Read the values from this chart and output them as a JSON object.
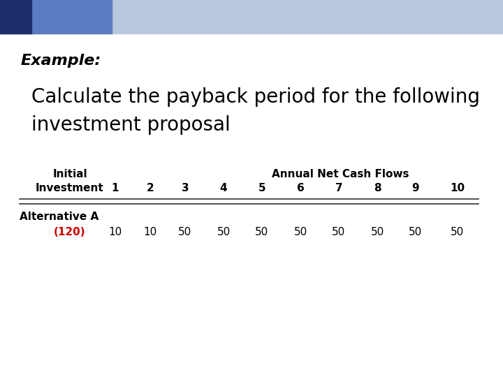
{
  "title_label": "Example:",
  "subtitle_line1": "Calculate the payback period for the following",
  "subtitle_line2": "investment proposal",
  "header_row1_col1": "Initial",
  "header_row1_annual": "Annual Net Cash Flows",
  "header_row2_col1": "Investment",
  "year_headers": [
    "1",
    "2",
    "3",
    "4",
    "5",
    "6",
    "7",
    "8",
    "9",
    "10"
  ],
  "alt_label": "Alternative A",
  "initial_investment": "(120)",
  "cash_flows": [
    "10",
    "10",
    "50",
    "50",
    "50",
    "50",
    "50",
    "50",
    "50",
    "50"
  ],
  "bg_color": "#ffffff",
  "bar_color_dark": "#1e2d6b",
  "bar_color_mid": "#5a7bbf",
  "bar_color_light": "#b8c8de",
  "title_color": "#000000",
  "subtitle_color": "#000000",
  "table_text_color": "#000000",
  "investment_color": "#cc0000",
  "alt_label_color": "#000000",
  "header_fontsize": 11,
  "subtitle_fontsize": 20,
  "title_fontsize": 16,
  "table_fontsize": 11
}
